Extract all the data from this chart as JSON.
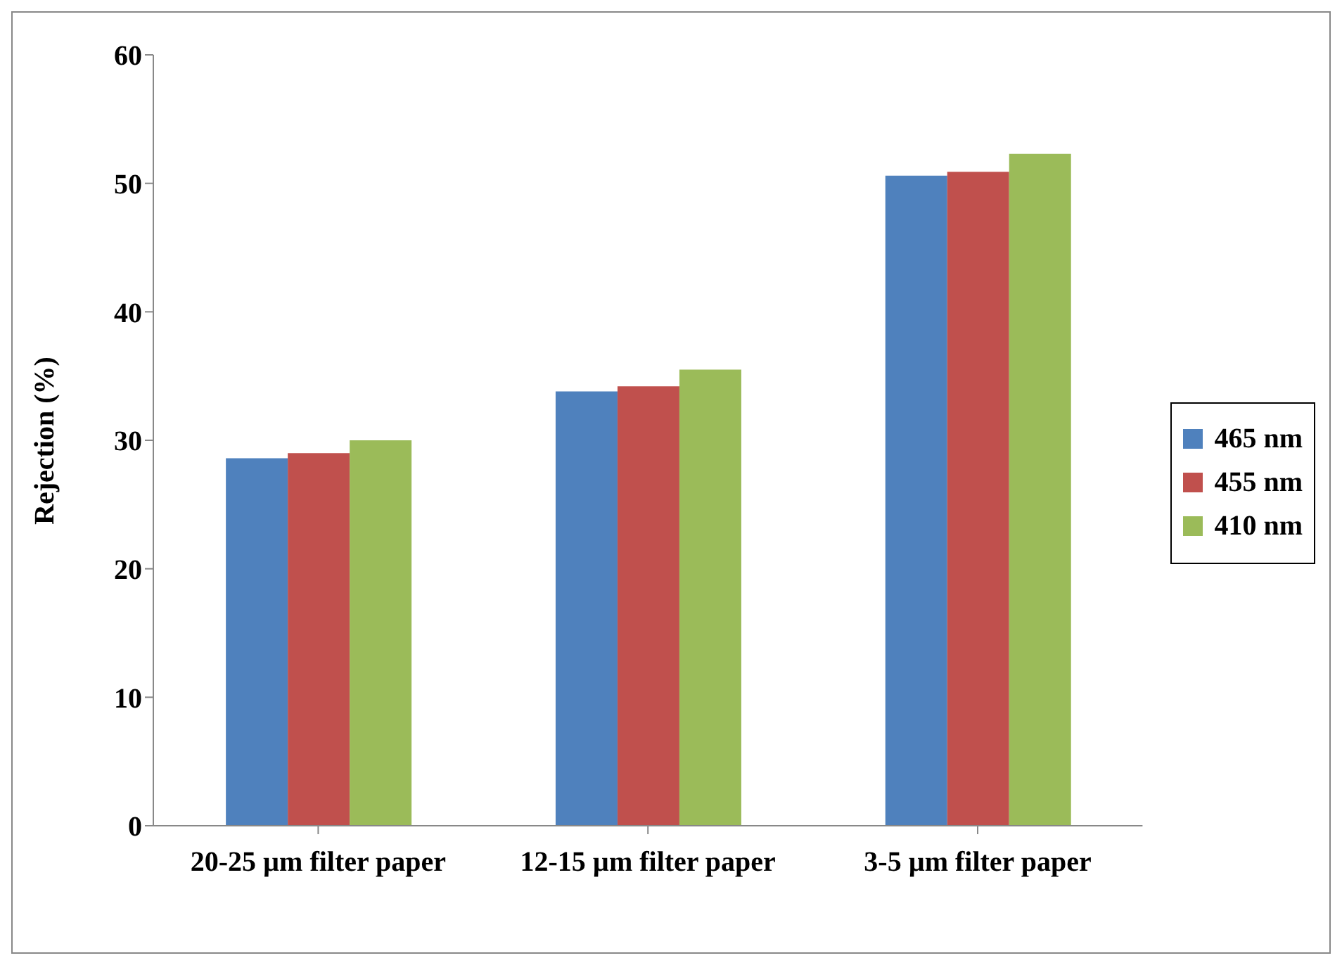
{
  "chart_data": {
    "type": "bar",
    "ylabel": "Rejection (%)",
    "categories": [
      "20-25 µm filter paper",
      "12-15 µm filter paper",
      "3-5 µm filter paper"
    ],
    "series": [
      {
        "name": "465 nm",
        "color": "#4f81bd",
        "values": [
          28.6,
          33.8,
          50.6
        ]
      },
      {
        "name": "455 nm",
        "color": "#c0504d",
        "values": [
          29.0,
          34.2,
          50.9
        ]
      },
      {
        "name": "410 nm",
        "color": "#9bbb59",
        "values": [
          30.0,
          35.5,
          52.3
        ]
      }
    ],
    "ylim": [
      0,
      60
    ],
    "yticks": [
      0,
      10,
      20,
      30,
      40,
      50,
      60
    ],
    "grid": false,
    "legend": "right"
  }
}
